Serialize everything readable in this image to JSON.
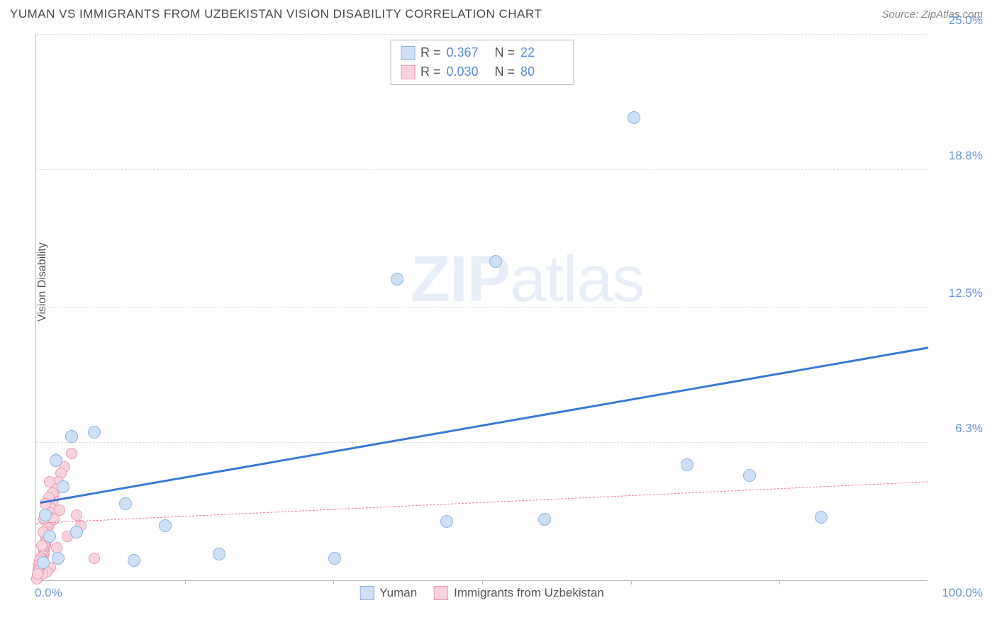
{
  "title": "YUMAN VS IMMIGRANTS FROM UZBEKISTAN VISION DISABILITY CORRELATION CHART",
  "source": "Source: ZipAtlas.com",
  "ylabel": "Vision Disability",
  "watermark_bold": "ZIP",
  "watermark_rest": "atlas",
  "chart": {
    "type": "scatter",
    "xlim": [
      0,
      100
    ],
    "ylim": [
      0,
      25
    ],
    "xticks": [
      {
        "pos": 0.0,
        "label": "0.0%"
      },
      {
        "pos": 100.0,
        "label": "100.0%"
      }
    ],
    "x_grid_ticks": [
      16.67,
      33.33,
      50.0,
      66.67,
      83.33
    ],
    "yticks": [
      {
        "pos": 6.3,
        "label": "6.3%"
      },
      {
        "pos": 12.5,
        "label": "12.5%"
      },
      {
        "pos": 18.8,
        "label": "18.8%"
      },
      {
        "pos": 25.0,
        "label": "25.0%"
      }
    ],
    "background_color": "#ffffff",
    "grid_color": "#dddddd",
    "axis_color": "#bbbbbb",
    "series": [
      {
        "id": "yuman",
        "label": "Yuman",
        "marker_fill": "#cfe0f5",
        "marker_stroke": "#8fb4df",
        "marker_radius": 9,
        "line_color": "#3b78d6",
        "line_width": 3,
        "line_dash": "solid",
        "R": "0.367",
        "N": "22",
        "trend": {
          "x1": 0.5,
          "y1": 3.5,
          "x2": 100,
          "y2": 10.6
        },
        "points": [
          [
            67.0,
            21.2
          ],
          [
            51.5,
            14.6
          ],
          [
            40.5,
            13.8
          ],
          [
            73.0,
            5.3
          ],
          [
            80.0,
            4.8
          ],
          [
            88.0,
            2.9
          ],
          [
            57.0,
            2.8
          ],
          [
            46.0,
            2.7
          ],
          [
            33.5,
            1.0
          ],
          [
            20.5,
            1.2
          ],
          [
            14.5,
            2.5
          ],
          [
            11.0,
            0.9
          ],
          [
            10.0,
            3.5
          ],
          [
            6.5,
            6.8
          ],
          [
            4.0,
            6.6
          ],
          [
            3.0,
            4.3
          ],
          [
            2.2,
            5.5
          ],
          [
            1.5,
            2.0
          ],
          [
            1.0,
            3.0
          ],
          [
            0.8,
            0.8
          ],
          [
            2.5,
            1.0
          ],
          [
            4.5,
            2.2
          ]
        ]
      },
      {
        "id": "uzbekistan",
        "label": "Immigrants from Uzbekistan",
        "marker_fill": "#f8d3de",
        "marker_stroke": "#e99ab2",
        "marker_radius": 8,
        "line_color": "#e77a95",
        "line_width": 1,
        "line_dash": "dashed",
        "R": "0.030",
        "N": "80",
        "trend": {
          "x1": 0,
          "y1": 2.6,
          "x2": 100,
          "y2": 4.5
        },
        "points": [
          [
            4.0,
            5.8
          ],
          [
            3.2,
            5.2
          ],
          [
            2.8,
            4.9
          ],
          [
            2.5,
            4.5
          ],
          [
            2.2,
            4.2
          ],
          [
            2.0,
            3.9
          ],
          [
            1.9,
            3.7
          ],
          [
            1.8,
            3.5
          ],
          [
            1.7,
            3.3
          ],
          [
            1.6,
            3.1
          ],
          [
            1.5,
            2.9
          ],
          [
            1.5,
            2.7
          ],
          [
            1.4,
            2.5
          ],
          [
            1.3,
            2.4
          ],
          [
            1.3,
            2.2
          ],
          [
            1.2,
            2.1
          ],
          [
            1.2,
            2.0
          ],
          [
            1.1,
            1.9
          ],
          [
            1.1,
            1.8
          ],
          [
            1.0,
            1.7
          ],
          [
            1.0,
            1.6
          ],
          [
            0.95,
            1.5
          ],
          [
            0.9,
            1.4
          ],
          [
            0.9,
            1.3
          ],
          [
            0.85,
            1.2
          ],
          [
            0.8,
            1.15
          ],
          [
            0.8,
            1.1
          ],
          [
            0.75,
            1.0
          ],
          [
            0.7,
            0.95
          ],
          [
            0.7,
            0.9
          ],
          [
            0.65,
            0.85
          ],
          [
            0.6,
            0.8
          ],
          [
            0.6,
            0.75
          ],
          [
            0.55,
            0.7
          ],
          [
            0.5,
            0.65
          ],
          [
            0.5,
            0.6
          ],
          [
            0.45,
            0.55
          ],
          [
            0.4,
            0.5
          ],
          [
            0.4,
            0.48
          ],
          [
            0.38,
            0.45
          ],
          [
            0.35,
            0.42
          ],
          [
            0.35,
            0.4
          ],
          [
            0.3,
            0.38
          ],
          [
            0.3,
            0.35
          ],
          [
            0.28,
            0.32
          ],
          [
            0.25,
            0.3
          ],
          [
            0.25,
            0.28
          ],
          [
            0.22,
            0.25
          ],
          [
            0.2,
            0.22
          ],
          [
            0.2,
            0.2
          ],
          [
            0.18,
            0.18
          ],
          [
            0.15,
            0.15
          ],
          [
            0.15,
            0.12
          ],
          [
            0.12,
            0.1
          ],
          [
            0.1,
            0.08
          ],
          [
            0.1,
            0.05
          ],
          [
            6.5,
            1.0
          ],
          [
            5.0,
            2.5
          ],
          [
            4.5,
            3.0
          ],
          [
            3.5,
            2.0
          ],
          [
            2.6,
            3.2
          ],
          [
            2.3,
            1.5
          ],
          [
            1.8,
            4.0
          ],
          [
            1.6,
            0.6
          ],
          [
            1.4,
            3.8
          ],
          [
            1.2,
            0.4
          ],
          [
            0.9,
            2.8
          ],
          [
            0.7,
            0.3
          ],
          [
            2.0,
            2.8
          ],
          [
            1.5,
            4.5
          ],
          [
            1.0,
            3.5
          ],
          [
            0.8,
            2.2
          ],
          [
            0.6,
            1.6
          ],
          [
            0.5,
            1.0
          ],
          [
            0.4,
            0.9
          ],
          [
            0.35,
            0.7
          ],
          [
            0.3,
            0.6
          ],
          [
            0.25,
            0.5
          ],
          [
            0.2,
            0.4
          ],
          [
            0.15,
            0.3
          ]
        ]
      }
    ],
    "legend_top_labels": {
      "R": "R  =",
      "N": "N  ="
    }
  }
}
